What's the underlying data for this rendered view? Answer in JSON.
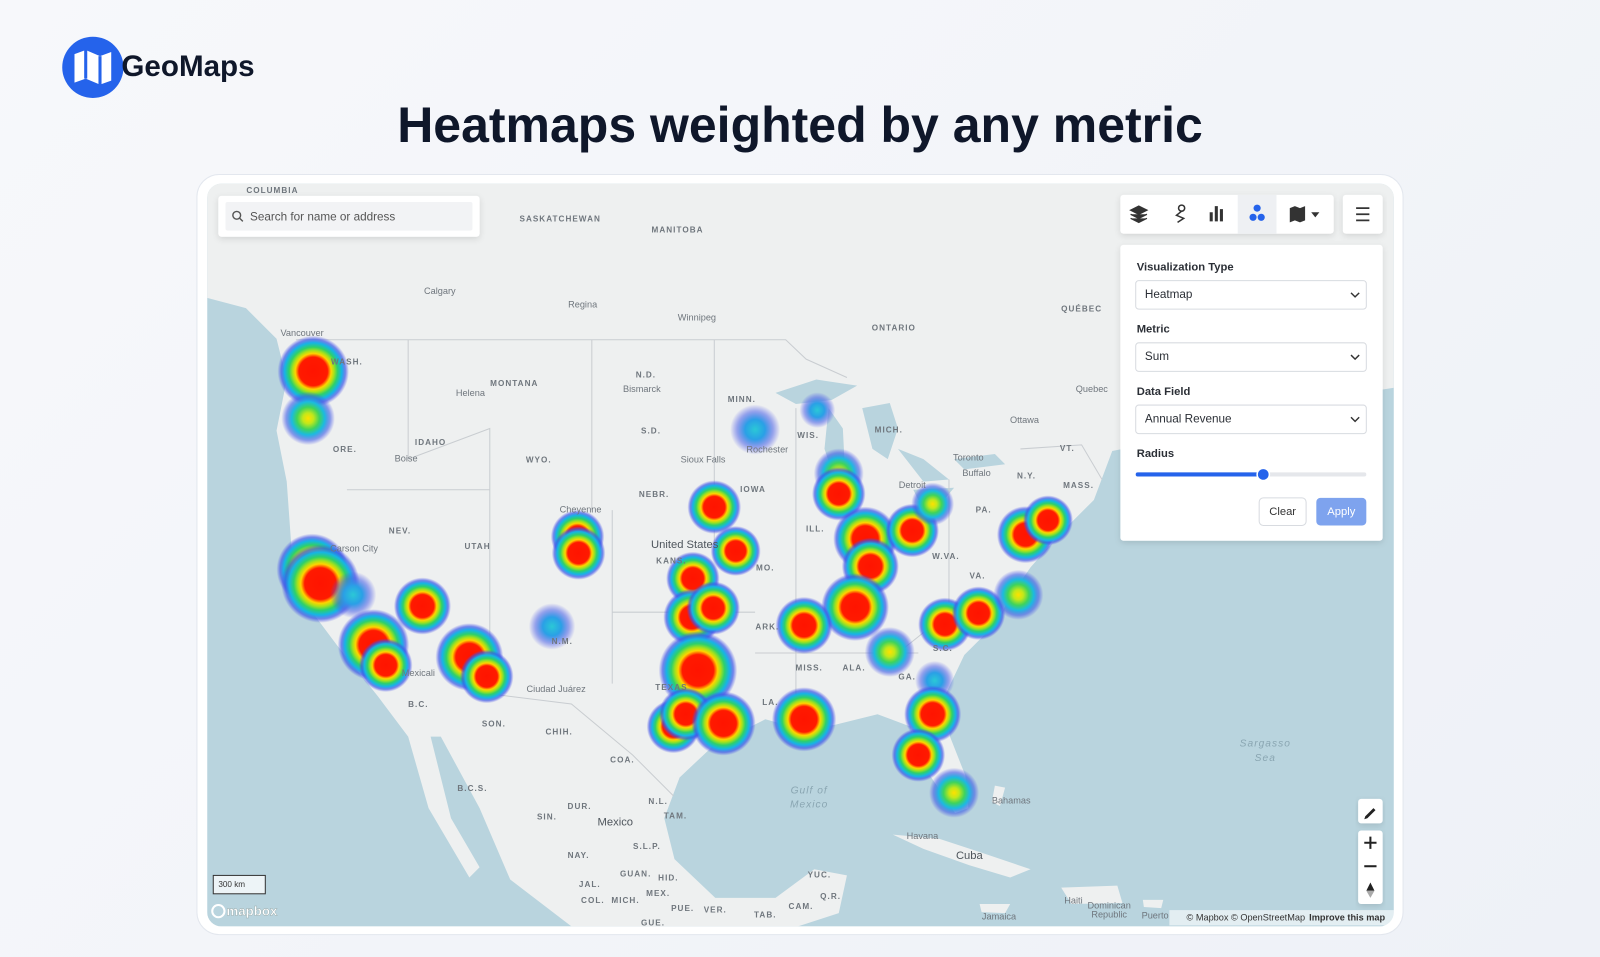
{
  "header": {
    "brand": "GeoMaps",
    "title": "Heatmaps weighted by any metric"
  },
  "search": {
    "placeholder": "Search for name or address"
  },
  "panel": {
    "fields": [
      {
        "label": "Visualization Type",
        "value": "Heatmap"
      },
      {
        "label": "Metric",
        "value": "Sum"
      },
      {
        "label": "Data Field",
        "value": "Annual Revenue"
      }
    ],
    "radius_label": "Radius",
    "clear": "Clear",
    "apply": "Apply"
  },
  "map": {
    "labels": [
      "COLUMBIA",
      "SASKATCHEWAN",
      "MANITOBA",
      "Calgary",
      "Regina",
      "Winnipeg",
      "ONTARIO",
      "QUÉBEC",
      "Vancouver",
      "WASH.",
      "MONTANA",
      "N.D.",
      "Bismarck",
      "Helena",
      "MINN.",
      "Quebec",
      "Ottawa",
      "ORE.",
      "IDAHO",
      "S.D.",
      "WIS.",
      "MICH.",
      "Rochester",
      "WYO.",
      "Boise",
      "Sioux Falls",
      "Toronto",
      "Buffalo",
      "N.Y.",
      "VT.",
      "MASS.",
      "IOWA",
      "NEBR.",
      "Detroit",
      "Cheyenne",
      "PA.",
      "NEV.",
      "ILL.",
      "UTAH",
      "Carson City",
      "United States",
      "KANS.",
      "W.VA.",
      "MO.",
      "VA.",
      "N.M.",
      "ARK.",
      "S.C.",
      "MISS.",
      "ALA.",
      "GA.",
      "TEXAS",
      "Ciudad Juárez",
      "Mexicali",
      "B.C.",
      "LA.",
      "SON.",
      "CHIH.",
      "COA.",
      "Gulf of",
      "Mexico",
      "Sargasso",
      "Sea",
      "B.C.S.",
      "Bahamas",
      "DUR.",
      "N.L.",
      "SIN.",
      "TAM.",
      "Mexico",
      "S.L.P.",
      "Havana",
      "NAY.",
      "Cuba",
      "GUAN.",
      "HID.",
      "YUC.",
      "JAL.",
      "MEX.",
      "COL.",
      "MICH.",
      "Q.R.",
      "PUE.",
      "VER.",
      "CAM.",
      "TAB.",
      "GUE.",
      "Haiti",
      "Dominican",
      "Republic",
      "Jamaica",
      "Puerto"
    ],
    "scale_label": "300 km",
    "logo": "mapbox",
    "attribution": "© Mapbox © OpenStreetMap",
    "improve": "Improve this map"
  }
}
